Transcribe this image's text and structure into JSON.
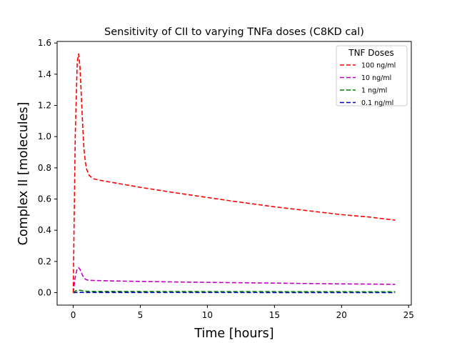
{
  "chart_data": {
    "type": "line",
    "title": "Sensitivity of CII to varying TNFa doses (C8KD cal)",
    "xlabel": "Time [hours]",
    "ylabel": "Complex II [molecules]",
    "xlim": [
      -1.2,
      25.2
    ],
    "ylim": [
      -0.08,
      1.61
    ],
    "xticks": [
      0,
      5,
      10,
      15,
      20,
      25
    ],
    "xtick_labels": [
      "0",
      "5",
      "10",
      "15",
      "20",
      "25"
    ],
    "yticks": [
      0.0,
      0.2,
      0.4,
      0.6,
      0.8,
      1.0,
      1.2,
      1.4,
      1.6
    ],
    "ytick_labels": [
      "0.0",
      "0.2",
      "0.4",
      "0.6",
      "0.8",
      "1.0",
      "1.2",
      "1.4",
      "1.6"
    ],
    "grid": false,
    "legend": {
      "title": "TNF Doses",
      "position": "top-right"
    },
    "series": [
      {
        "name": "100 ng/ml",
        "color": "#ff0000",
        "dash": "dashed",
        "x": [
          0,
          0.15,
          0.3,
          0.4,
          0.5,
          0.6,
          0.7,
          0.8,
          0.9,
          1.0,
          1.2,
          1.5,
          2,
          3,
          5,
          8,
          10,
          12,
          15,
          18,
          20,
          22,
          24
        ],
        "y": [
          0,
          1.0,
          1.48,
          1.53,
          1.45,
          1.27,
          1.08,
          0.92,
          0.84,
          0.79,
          0.75,
          0.73,
          0.72,
          0.705,
          0.675,
          0.635,
          0.61,
          0.585,
          0.55,
          0.52,
          0.5,
          0.485,
          0.465
        ]
      },
      {
        "name": "10 ng/ml",
        "color": "#bf00bf",
        "dash": "dashed",
        "x": [
          0,
          0.15,
          0.3,
          0.4,
          0.5,
          0.6,
          0.7,
          0.8,
          0.9,
          1.0,
          1.2,
          1.5,
          2,
          3,
          5,
          8,
          10,
          12,
          15,
          18,
          20,
          22,
          24
        ],
        "y": [
          0,
          0.1,
          0.155,
          0.16,
          0.15,
          0.13,
          0.11,
          0.095,
          0.087,
          0.082,
          0.079,
          0.078,
          0.077,
          0.075,
          0.072,
          0.068,
          0.066,
          0.064,
          0.061,
          0.058,
          0.056,
          0.055,
          0.053
        ]
      },
      {
        "name": "1 ng/ml",
        "color": "#008000",
        "dash": "dashed",
        "x": [
          0,
          0.2,
          0.4,
          0.6,
          0.8,
          1.0,
          1.5,
          2,
          5,
          10,
          15,
          20,
          24
        ],
        "y": [
          0,
          0.012,
          0.016,
          0.014,
          0.011,
          0.009,
          0.008,
          0.0078,
          0.0075,
          0.007,
          0.0065,
          0.006,
          0.0055
        ]
      },
      {
        "name": "0.1 ng/ml",
        "color": "#0000bf",
        "dash": "dashed",
        "x": [
          0,
          0.2,
          0.4,
          0.6,
          0.8,
          1.0,
          2,
          5,
          10,
          15,
          20,
          24
        ],
        "y": [
          0,
          0.0012,
          0.0016,
          0.0014,
          0.0011,
          0.0009,
          0.0008,
          0.00078,
          0.00072,
          0.00066,
          0.0006,
          0.00055
        ]
      }
    ]
  }
}
